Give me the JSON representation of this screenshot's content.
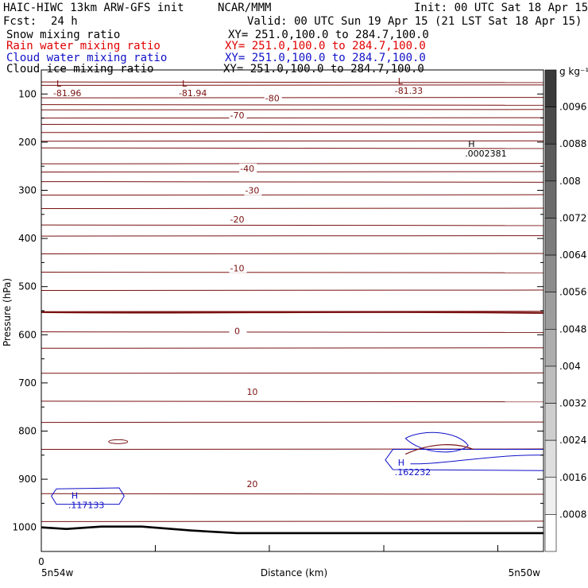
{
  "header": {
    "model": "HAIC-HIWC 13km ARW-GFS init",
    "org": "NCAR/MMM",
    "init": "Init: 00 UTC Sat 18 Apr 15",
    "fcst_label": "Fcst:",
    "fcst_value": "24 h",
    "valid": "Valid: 00 UTC Sun 19 Apr 15 (21 LST Sat 18 Apr 15)"
  },
  "fields": [
    {
      "name": "Snow mixing ratio",
      "xy": "XY= 251.0,100.0 to 284.7,100.0",
      "color": "#000000"
    },
    {
      "name": "Rain water mixing ratio",
      "xy": "XY= 251.0,100.0 to 284.7,100.0",
      "color": "#e00000"
    },
    {
      "name": "Cloud water mixing ratio",
      "xy": "XY= 251.0,100.0 to 284.7,100.0",
      "color": "#1010c8"
    },
    {
      "name": "Cloud ice mixing ratio",
      "xy": "XY= 251.0,100.0 to 284.7,100.0",
      "color": "#000000"
    }
  ],
  "chart_data": {
    "type": "cross-section contour",
    "xlabel": "Distance (km)",
    "ylabel": "Pressure (hPa)",
    "x_start_tick": "0",
    "x_left_label": "5n54w",
    "x_right_label": "5n50w",
    "y_ticks": [
      100,
      200,
      300,
      400,
      500,
      600,
      700,
      800,
      900,
      1000
    ],
    "ylim": [
      50,
      1050
    ],
    "colorbar": {
      "unit": "g kg⁻¹",
      "labels": [
        ".0096",
        ".0088",
        ".008",
        ".0072",
        ".0064",
        ".0056",
        ".0048",
        ".004",
        ".0032",
        ".0024",
        ".0016",
        ".0008"
      ],
      "gray_top": "#3a3a3a",
      "gray_bottom": "#ffffff"
    },
    "temperature_contour_color": "#7a1010",
    "temperature_labels": [
      {
        "text": "-80",
        "x": 0.46,
        "p": 110
      },
      {
        "text": "-70",
        "x": 0.39,
        "p": 146
      },
      {
        "text": "-40",
        "x": 0.41,
        "p": 256
      },
      {
        "text": "-30",
        "x": 0.42,
        "p": 302
      },
      {
        "text": "-20",
        "x": 0.39,
        "p": 362
      },
      {
        "text": "-10",
        "x": 0.39,
        "p": 463
      },
      {
        "text": "0",
        "x": 0.39,
        "p": 594
      },
      {
        "text": "10",
        "x": 0.42,
        "p": 720
      },
      {
        "text": "20",
        "x": 0.42,
        "p": 911
      }
    ],
    "extrema": [
      {
        "type": "L",
        "value": "-81.96",
        "x": 0.03,
        "p": 85,
        "color": "#7a1010"
      },
      {
        "type": "L",
        "value": "-81.94",
        "x": 0.28,
        "p": 85,
        "color": "#7a1010"
      },
      {
        "type": "L",
        "value": "-81.33",
        "x": 0.71,
        "p": 80,
        "color": "#7a1010"
      },
      {
        "type": "H",
        "value": ".0002381",
        "x": 0.85,
        "p": 210,
        "color": "#000000"
      },
      {
        "type": "H",
        "value": ".162232",
        "x": 0.71,
        "p": 872,
        "color": "#1010c8"
      },
      {
        "type": "H",
        "value": ".117133",
        "x": 0.06,
        "p": 940,
        "color": "#1010c8"
      }
    ],
    "isotherm_pressures": [
      75,
      82,
      108,
      122,
      133,
      150,
      163,
      180,
      198,
      212,
      245,
      262,
      282,
      310,
      338,
      372,
      395,
      432,
      470,
      508,
      552,
      594,
      628,
      680,
      738,
      782,
      838,
      930,
      988
    ],
    "freezing_level_p": 553,
    "terrain_p_left": 1000,
    "terrain_p_right": 1012
  }
}
